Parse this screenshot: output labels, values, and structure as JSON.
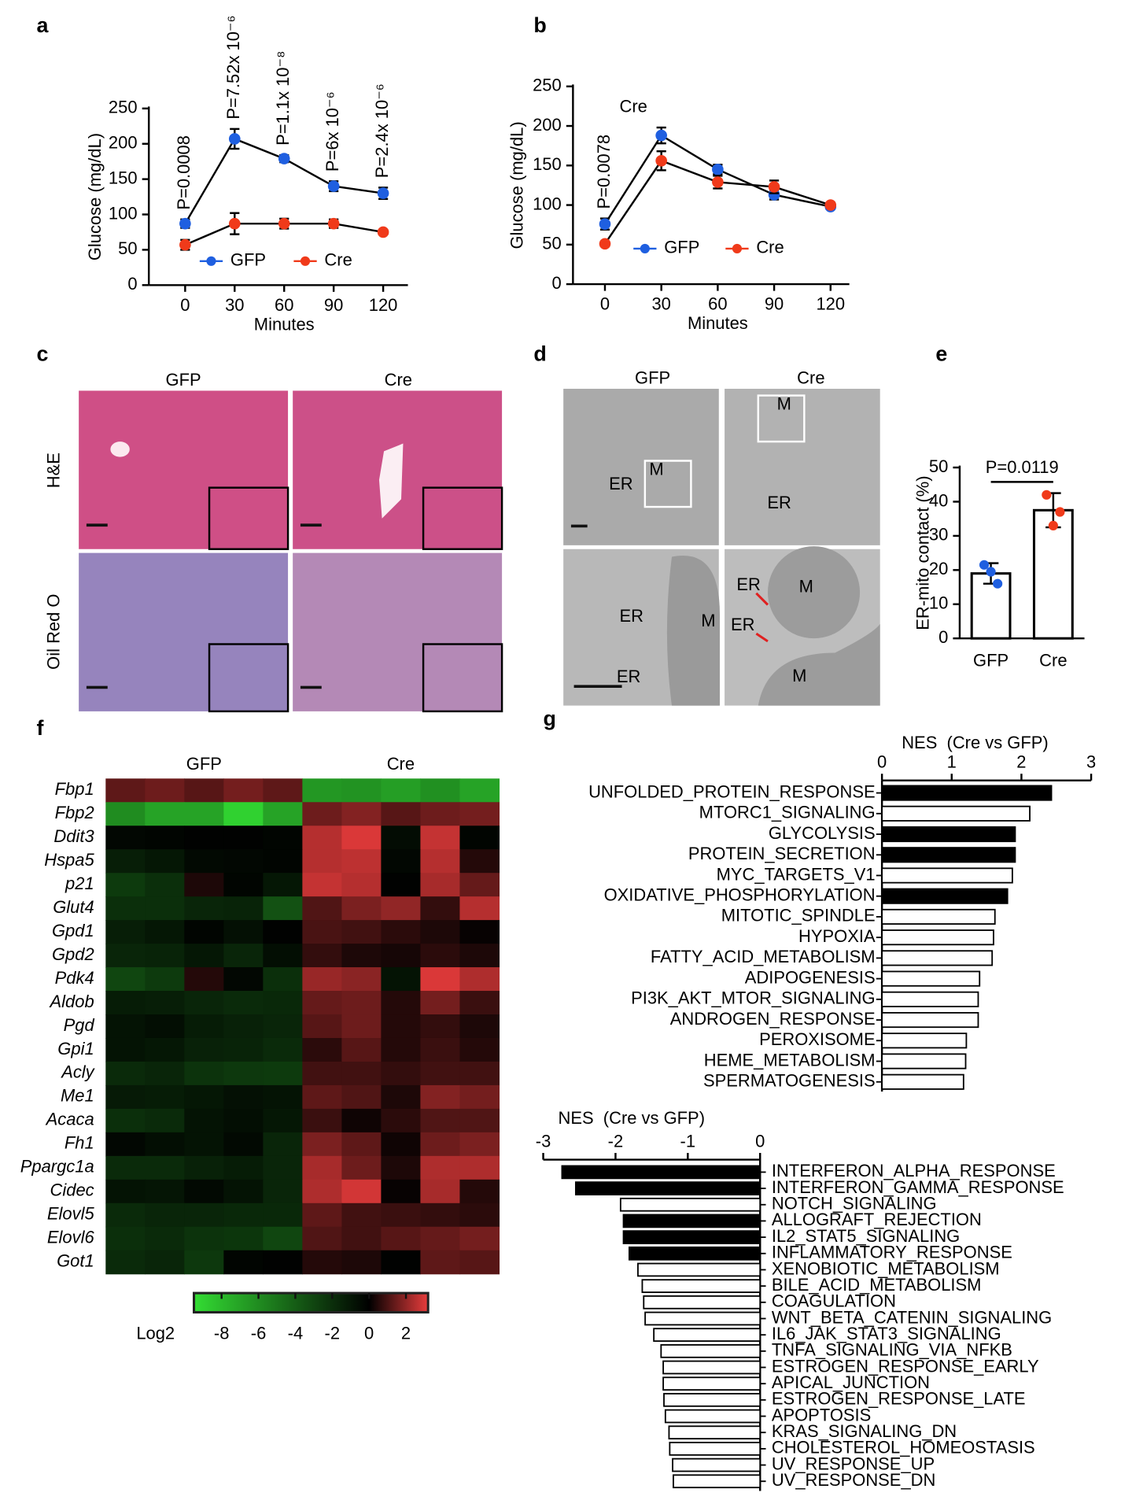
{
  "chart_data": [
    {
      "type": "line",
      "panel_label": "a",
      "x": [
        0,
        30,
        60,
        90,
        120
      ],
      "xlim": [
        -22,
        135
      ],
      "xticks": [
        0,
        30,
        60,
        90,
        120
      ],
      "ylim": [
        0,
        250
      ],
      "yticks": [
        0,
        50,
        100,
        150,
        200,
        250
      ],
      "xlabel": "Minutes",
      "ylabel": "Glucose (mg/dL)",
      "series": [
        {
          "name": "GFP",
          "color": "#1f5fe0",
          "values": [
            87,
            207,
            179,
            140,
            130
          ],
          "errors": [
            6,
            14,
            5,
            7,
            8
          ]
        },
        {
          "name": "Cre",
          "color": "#f03a1a",
          "values": [
            57,
            87,
            87,
            87,
            75
          ],
          "errors": [
            7,
            15,
            7,
            6,
            3
          ]
        }
      ],
      "annotations": [
        "P=0.0008",
        "P=7.52x 10⁻⁶",
        "P=1.1x 10⁻⁸",
        "P=6x 10⁻⁶",
        "P=2.4x 10⁻⁶"
      ]
    },
    {
      "type": "line",
      "panel_label": "b",
      "title": "Cre",
      "x": [
        0,
        30,
        60,
        90,
        120
      ],
      "xlim": [
        -17,
        130
      ],
      "xticks": [
        0,
        30,
        60,
        90,
        120
      ],
      "ylim": [
        0,
        250
      ],
      "yticks": [
        0,
        50,
        100,
        150,
        200,
        250
      ],
      "xlabel": "Minutes",
      "ylabel": "Glucose (mg/dL)",
      "series": [
        {
          "name": "GFP",
          "color": "#1f5fe0",
          "values": [
            76,
            188,
            145,
            113,
            98
          ],
          "errors": [
            7,
            10,
            6,
            6,
            3
          ]
        },
        {
          "name": "Cre",
          "color": "#f03a1a",
          "values": [
            51,
            156,
            129,
            123,
            100
          ],
          "errors": [
            3,
            12,
            8,
            8,
            3
          ]
        }
      ],
      "annotations": [
        "P=0.0078",
        null,
        null,
        null,
        null
      ]
    },
    {
      "type": "bar",
      "panel_label": "e",
      "categories": [
        "GFP",
        "Cre"
      ],
      "values": [
        19,
        37.5
      ],
      "errors": [
        3,
        5
      ],
      "points": [
        [
          21.5,
          16,
          19.5
        ],
        [
          42,
          37,
          33
        ]
      ],
      "colors": [
        "#1f5fe0",
        "#f03a1a"
      ],
      "ylim": [
        0,
        50
      ],
      "yticks": [
        0,
        10,
        20,
        30,
        40,
        50
      ],
      "ylabel": "ER-mito contact (%)",
      "annotation": "P=0.0119"
    },
    {
      "type": "heatmap",
      "panel_label": "f",
      "groups": [
        "GFP",
        "Cre"
      ],
      "rows": [
        "Fbp1",
        "Fbp2",
        "Ddit3",
        "Hspa5",
        "p21",
        "Glut4",
        "Gpd1",
        "Gpd2",
        "Pdk4",
        "Aldob",
        "Pgd",
        "Gpi1",
        "Acly",
        "Me1",
        "Acaca",
        "Fh1",
        "Ppargc1a",
        "Cidec",
        "Elovl5",
        "Elovl6",
        "Got1"
      ],
      "values": [
        [
          1.3,
          1.5,
          1.2,
          1.6,
          1.3,
          -6.5,
          -6.3,
          -6.8,
          -6.2,
          -7
        ],
        [
          -6,
          -7,
          -7,
          -9,
          -7,
          1.5,
          1.8,
          1.2,
          1.5,
          1.6
        ],
        [
          -0.3,
          -0.2,
          -0.1,
          -0.1,
          -0.2,
          2.5,
          3,
          -0.5,
          2.7,
          -0.2
        ],
        [
          -1.3,
          -1,
          -0.4,
          -0.3,
          -0.2,
          2.5,
          2.6,
          -0.3,
          2.5,
          0.5
        ],
        [
          -2.5,
          -2,
          0.4,
          -0.2,
          -1,
          2.7,
          2.5,
          -0.1,
          2.3,
          1.4
        ],
        [
          -2,
          -2,
          -1.6,
          -1.5,
          -3.5,
          1.1,
          1.7,
          2,
          0.7,
          2.5
        ],
        [
          -1.3,
          -1,
          -0.2,
          -0.7,
          -0.1,
          1,
          0.9,
          0.6,
          0.4,
          0.1
        ],
        [
          -1.6,
          -1.5,
          -1,
          -1.6,
          -0.6,
          0.7,
          0.4,
          0.3,
          0.6,
          0.4
        ],
        [
          -3,
          -2.5,
          0.5,
          -0.3,
          -2,
          2.1,
          1.9,
          -0.8,
          3,
          2.4
        ],
        [
          -1.2,
          -1.3,
          -1.6,
          -1.8,
          -1.7,
          1.4,
          1.5,
          0.5,
          1.6,
          0.8
        ],
        [
          -0.8,
          -0.6,
          -1.2,
          -1.4,
          -1.6,
          1.2,
          1.5,
          0.5,
          0.7,
          0.4
        ],
        [
          -0.8,
          -1,
          -1.4,
          -1.5,
          -1.8,
          0.6,
          1.2,
          0.5,
          0.8,
          0.5
        ],
        [
          -1.8,
          -1.6,
          -2.2,
          -2.4,
          -2.5,
          0.9,
          0.9,
          0.7,
          0.9,
          0.9
        ],
        [
          -1.1,
          -1.2,
          -1,
          -0.7,
          -0.8,
          1.3,
          1.1,
          0.4,
          1.8,
          1.6
        ],
        [
          -2,
          -1.8,
          -0.8,
          -0.6,
          -1,
          0.8,
          0.2,
          0.6,
          1.1,
          1.1
        ],
        [
          -0.3,
          -0.6,
          -0.8,
          -0.4,
          -1.6,
          1.7,
          1.3,
          0.2,
          1.5,
          1.7
        ],
        [
          -1.8,
          -1.8,
          -1.4,
          -1.2,
          -1.6,
          2.3,
          1.5,
          0.4,
          2.4,
          2.4
        ],
        [
          -0.8,
          -0.9,
          -0.4,
          -0.8,
          -1.6,
          2.4,
          2.9,
          0.1,
          2.3,
          0.5
        ],
        [
          -1.8,
          -1.6,
          -1.6,
          -1.7,
          -1.7,
          1.3,
          0.9,
          0.8,
          0.7,
          0.6
        ],
        [
          -2,
          -1.8,
          -2.2,
          -2.3,
          -3,
          1.1,
          0.9,
          1.2,
          1.4,
          1.6
        ],
        [
          -1.8,
          -1.6,
          -2.4,
          -0.2,
          -0.1,
          0.5,
          0.4,
          -0.1,
          1.3,
          1.2
        ]
      ],
      "clim": [
        -9.5,
        3.2
      ],
      "cticks": [
        -8,
        -6,
        -4,
        -2,
        0,
        2
      ],
      "clabel": "Log2",
      "colors": [
        "#33dd33",
        "#000000",
        "#e83c3c"
      ]
    },
    {
      "type": "barh",
      "panel_label": "g",
      "xlabel": "NES  (Cre vs GFP)",
      "xlim": [
        0,
        3
      ],
      "xticks": [
        0,
        1,
        2,
        3
      ],
      "categories": [
        "UNFOLDED_PROTEIN_RESPONSE",
        "MTORC1_SIGNALING",
        "GLYCOLYSIS",
        "PROTEIN_SECRETION",
        "MYC_TARGETS_V1",
        "OXIDATIVE_PHOSPHORYLATION",
        "MITOTIC_SPINDLE",
        "HYPOXIA",
        "FATTY_ACID_METABOLISM",
        "ADIPOGENESIS",
        "PI3K_AKT_MTOR_SIGNALING",
        "ANDROGEN_RESPONSE",
        "PEROXISOME",
        "HEME_METABOLISM",
        "SPERMATOGENESIS"
      ],
      "values": [
        2.43,
        2.12,
        1.91,
        1.91,
        1.87,
        1.8,
        1.62,
        1.6,
        1.58,
        1.4,
        1.38,
        1.38,
        1.21,
        1.2,
        1.17
      ],
      "colors": [
        "#000000",
        "#ffffff",
        "#000000",
        "#000000",
        "#ffffff",
        "#000000",
        "#ffffff",
        "#ffffff",
        "#ffffff",
        "#ffffff",
        "#ffffff",
        "#ffffff",
        "#ffffff",
        "#ffffff",
        "#ffffff"
      ]
    },
    {
      "type": "barh",
      "xlabel": "NES  (Cre vs GFP)",
      "xlim": [
        -3,
        0
      ],
      "xticks": [
        -3,
        -2,
        -1,
        0
      ],
      "categories": [
        "INTERFERON_ALPHA_RESPONSE",
        "INTERFERON_GAMMA_RESPONSE",
        "NOTCH_SIGNALING",
        "ALLOGRAFT_REJECTION",
        "IL2_STAT5_SIGNALING",
        "INFLAMMATORY_RESPONSE",
        "XENOBIOTIC_METABOLISM",
        "BILE_ACID_METABOLISM",
        "COAGULATION",
        "WNT_BETA_CATENIN_SIGNALING",
        "IL6_JAK_STAT3_SIGNALING",
        "TNFA_SIGNALING_VIA_NFKB",
        "ESTROGEN_RESPONSE_EARLY",
        "APICAL_JUNCTION",
        "ESTROGEN_RESPONSE_LATE",
        "APOPTOSIS",
        "KRAS_SIGNALING_DN",
        "CHOLESTEROL_HOMEOSTASIS",
        "UV_RESPONSE_UP",
        "UV_RESPONSE_DN"
      ],
      "values": [
        -2.74,
        -2.55,
        -1.93,
        -1.89,
        -1.89,
        -1.81,
        -1.69,
        -1.63,
        -1.61,
        -1.59,
        -1.47,
        -1.37,
        -1.34,
        -1.34,
        -1.33,
        -1.31,
        -1.26,
        -1.25,
        -1.21,
        -1.2
      ],
      "colors": [
        "#000000",
        "#000000",
        "#ffffff",
        "#000000",
        "#000000",
        "#000000",
        "#ffffff",
        "#ffffff",
        "#ffffff",
        "#ffffff",
        "#ffffff",
        "#ffffff",
        "#ffffff",
        "#ffffff",
        "#ffffff",
        "#ffffff",
        "#ffffff",
        "#ffffff",
        "#ffffff",
        "#ffffff"
      ]
    }
  ],
  "panels": {
    "c": {
      "label": "c",
      "columns": [
        "GFP",
        "Cre"
      ],
      "rows": [
        "H&E",
        "Oil Red O"
      ]
    },
    "d": {
      "label": "d",
      "columns": [
        "GFP",
        "Cre"
      ],
      "labels": [
        "M",
        "ER",
        "M",
        "ER",
        "ER",
        "M",
        "ER",
        "ER",
        "M",
        "ER",
        "M"
      ]
    }
  }
}
